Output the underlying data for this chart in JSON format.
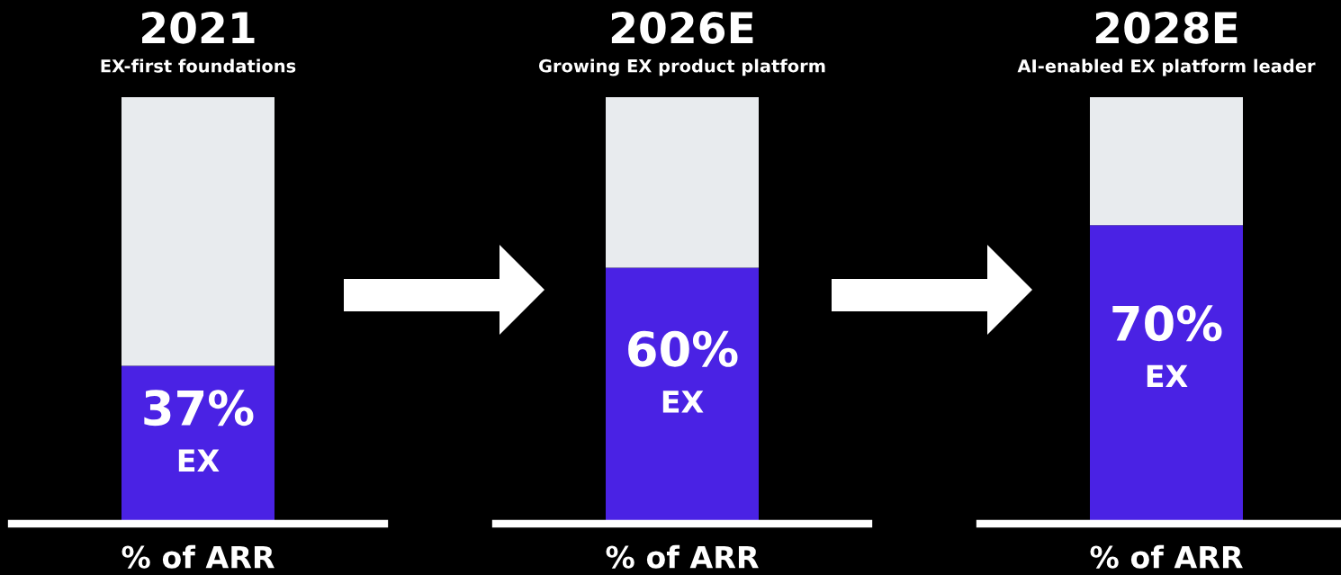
{
  "chart_data": [
    {
      "type": "bar",
      "title": "2021",
      "subtitle": "EX-first foundations",
      "xlabel": "% of ARR",
      "categories": [
        null
      ],
      "stacked": true,
      "ylim": [
        0,
        100
      ],
      "series": [
        {
          "name": "EX",
          "color": "#4a22e4",
          "values": [
            37
          ],
          "value_labels": [
            "37%"
          ]
        },
        {
          "color": "#e8ebee",
          "values": [
            63
          ]
        }
      ]
    },
    {
      "type": "bar",
      "title": "2026E",
      "subtitle": "Growing EX product platform",
      "xlabel": "% of ARR",
      "categories": [
        null
      ],
      "stacked": true,
      "ylim": [
        0,
        100
      ],
      "series": [
        {
          "name": "EX",
          "color": "#4a22e4",
          "values": [
            60
          ],
          "value_labels": [
            "60%"
          ]
        },
        {
          "color": "#e8ebee",
          "values": [
            40
          ]
        }
      ]
    },
    {
      "type": "bar",
      "title": "2028E",
      "subtitle": "AI-enabled EX platform leader",
      "xlabel": "% of ARR",
      "categories": [
        null
      ],
      "stacked": true,
      "ylim": [
        0,
        100
      ],
      "series": [
        {
          "name": "EX",
          "color": "#4a22e4",
          "values": [
            70
          ],
          "value_labels": [
            "70%"
          ]
        },
        {
          "color": "#e8ebee",
          "values": [
            30
          ]
        }
      ]
    }
  ]
}
